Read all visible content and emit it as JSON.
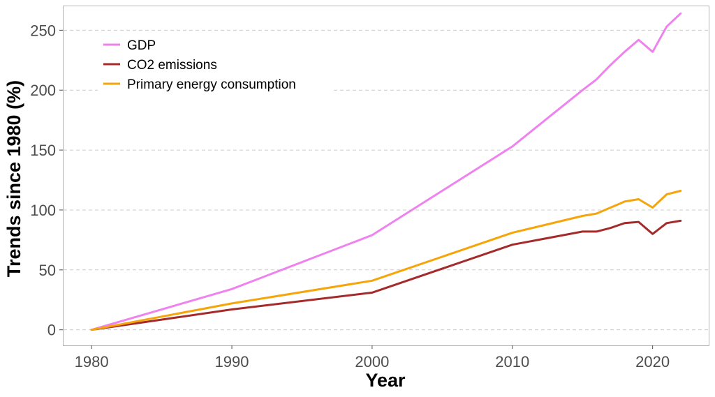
{
  "chart_data": {
    "type": "line",
    "title": "",
    "xlabel": "Year",
    "ylabel": "Trends since 1980 (%)",
    "xlim": [
      1978,
      2024
    ],
    "ylim": [
      -13,
      270
    ],
    "xticks": [
      1980,
      1990,
      2000,
      2010,
      2020
    ],
    "yticks": [
      0,
      50,
      100,
      150,
      200,
      250
    ],
    "grid": "horizontal dashed",
    "legend_position": "top-left",
    "x": [
      1980,
      1990,
      2000,
      2010,
      2015,
      2016,
      2017,
      2018,
      2019,
      2020,
      2021,
      2022
    ],
    "series": [
      {
        "name": "GDP",
        "color": "#ee82ee",
        "values": [
          0,
          34,
          79,
          153,
          200,
          209,
          221,
          232,
          242,
          232,
          253,
          264
        ]
      },
      {
        "name": "CO2 emissions",
        "color": "#a52a2a",
        "values": [
          0,
          17,
          31,
          71,
          82,
          82,
          85,
          89,
          90,
          80,
          89,
          91
        ]
      },
      {
        "name": "Primary energy consumption",
        "color": "#f5a50a",
        "values": [
          0,
          22,
          41,
          81,
          95,
          97,
          102,
          107,
          109,
          102,
          113,
          116
        ]
      }
    ]
  }
}
